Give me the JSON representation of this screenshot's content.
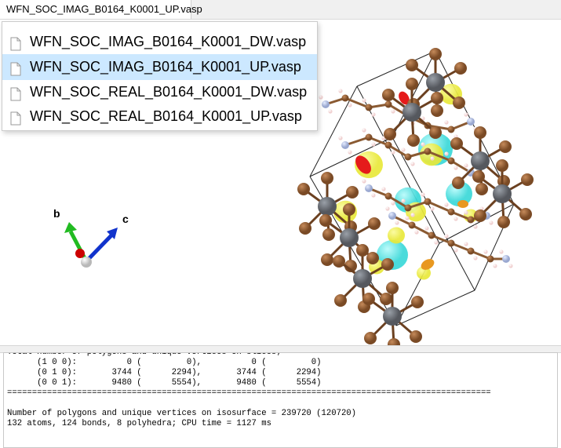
{
  "tab": {
    "title": "WFN_SOC_IMAG_B0164_K0001_UP.vasp"
  },
  "dropdown": {
    "items": [
      {
        "label": "WFN_SOC_IMAG_B0164_K0001_DW.vasp",
        "selected": false
      },
      {
        "label": "WFN_SOC_IMAG_B0164_K0001_UP.vasp",
        "selected": true
      },
      {
        "label": "WFN_SOC_REAL_B0164_K0001_DW.vasp",
        "selected": false
      },
      {
        "label": "WFN_SOC_REAL_B0164_K0001_UP.vasp",
        "selected": false
      }
    ]
  },
  "axes": {
    "b": "b",
    "c": "c"
  },
  "colors": {
    "axis_a": "#cc0000",
    "axis_b": "#22bb22",
    "axis_c": "#1133cc",
    "isosurface_yellow": "#e8e83a",
    "isosurface_cyan": "#3ad8d8",
    "atom_brown": "#7a4a25",
    "atom_gray": "#55585e",
    "atom_n": "#9aa8d0",
    "atom_h": "#f0d0d0"
  },
  "log": {
    "lines": [
      "Total number of polygons and unique vertices on slices;",
      "      (1 0 0):          0 (         0),          0 (         0)",
      "      (0 1 0):       3744 (      2294),       3744 (      2294)",
      "      (0 0 1):       9480 (      5554),       9480 (      5554)",
      "=================================================================================================",
      "",
      "Number of polygons and unique vertices on isosurface = 239720 (120720)",
      "132 atoms, 124 bonds, 8 polyhedra; CPU time = 1127 ms"
    ]
  }
}
